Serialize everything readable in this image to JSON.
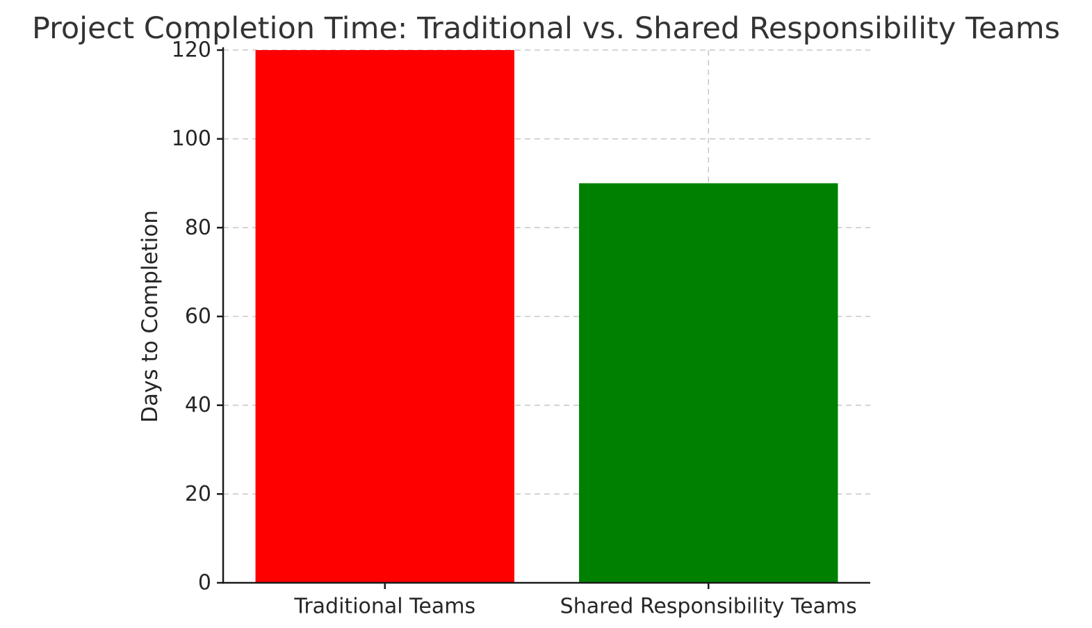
{
  "chart_data": {
    "type": "bar",
    "title": "Project Completion Time: Traditional vs. Shared Responsibility Teams",
    "categories": [
      "Traditional Teams",
      "Shared Responsibility Teams"
    ],
    "values": [
      120,
      90
    ],
    "bar_colors": [
      "#ff0000",
      "#008000"
    ],
    "xlabel": "",
    "ylabel": "Days to Completion",
    "ylim": [
      0,
      120
    ],
    "yticks": [
      0,
      20,
      40,
      60,
      80,
      100,
      120
    ],
    "grid": "dashed gridlines on both axes",
    "gridline_color": "#c9c9c9",
    "axis_color": "#1a1a1a",
    "legend_position": "none",
    "background_color": "#ffffff"
  }
}
